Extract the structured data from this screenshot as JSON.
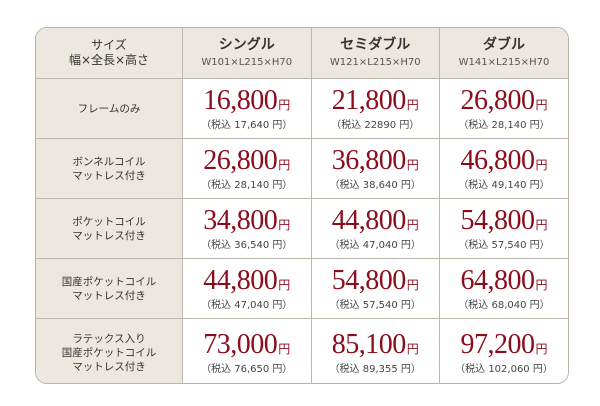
{
  "header": {
    "corner_line1": "サイズ",
    "corner_line2": "幅×全長×高さ",
    "columns": [
      {
        "name": "シングル",
        "dims": "W101×L215×H70"
      },
      {
        "name": "セミダブル",
        "dims": "W121×L215×H70"
      },
      {
        "name": "ダブル",
        "dims": "W141×L215×H70"
      }
    ]
  },
  "currency_suffix": "円",
  "rows": [
    {
      "label": "フレームのみ",
      "cells": [
        {
          "price": "16,800",
          "tax": "（税込 17,640 円）"
        },
        {
          "price": "21,800",
          "tax": "（税込 22890 円）"
        },
        {
          "price": "26,800",
          "tax": "（税込 28,140 円）"
        }
      ]
    },
    {
      "label": "ボンネルコイル\nマットレス付き",
      "cells": [
        {
          "price": "26,800",
          "tax": "（税込 28,140 円）"
        },
        {
          "price": "36,800",
          "tax": "（税込 38,640 円）"
        },
        {
          "price": "46,800",
          "tax": "（税込 49,140 円）"
        }
      ]
    },
    {
      "label": "ポケットコイル\nマットレス付き",
      "cells": [
        {
          "price": "34,800",
          "tax": "（税込 36,540 円）"
        },
        {
          "price": "44,800",
          "tax": "（税込 47,040 円）"
        },
        {
          "price": "54,800",
          "tax": "（税込 57,540 円）"
        }
      ]
    },
    {
      "label": "国産ポケットコイル\nマットレス付き",
      "cells": [
        {
          "price": "44,800",
          "tax": "（税込 47,040 円）"
        },
        {
          "price": "54,800",
          "tax": "（税込 57,540 円）"
        },
        {
          "price": "64,800",
          "tax": "（税込 68,040 円）"
        }
      ]
    },
    {
      "label": "ラテックス入り\n国産ポケットコイル\nマットレス付き",
      "cells": [
        {
          "price": "73,000",
          "tax": "（税込 76,650 円）"
        },
        {
          "price": "85,100",
          "tax": "（税込 89,355 円）"
        },
        {
          "price": "97,200",
          "tax": "（税込 102,060 円）"
        }
      ]
    }
  ],
  "colors": {
    "price": "#8b0d1c",
    "header_bg": "#ece8df",
    "border": "#bdb7ad"
  }
}
